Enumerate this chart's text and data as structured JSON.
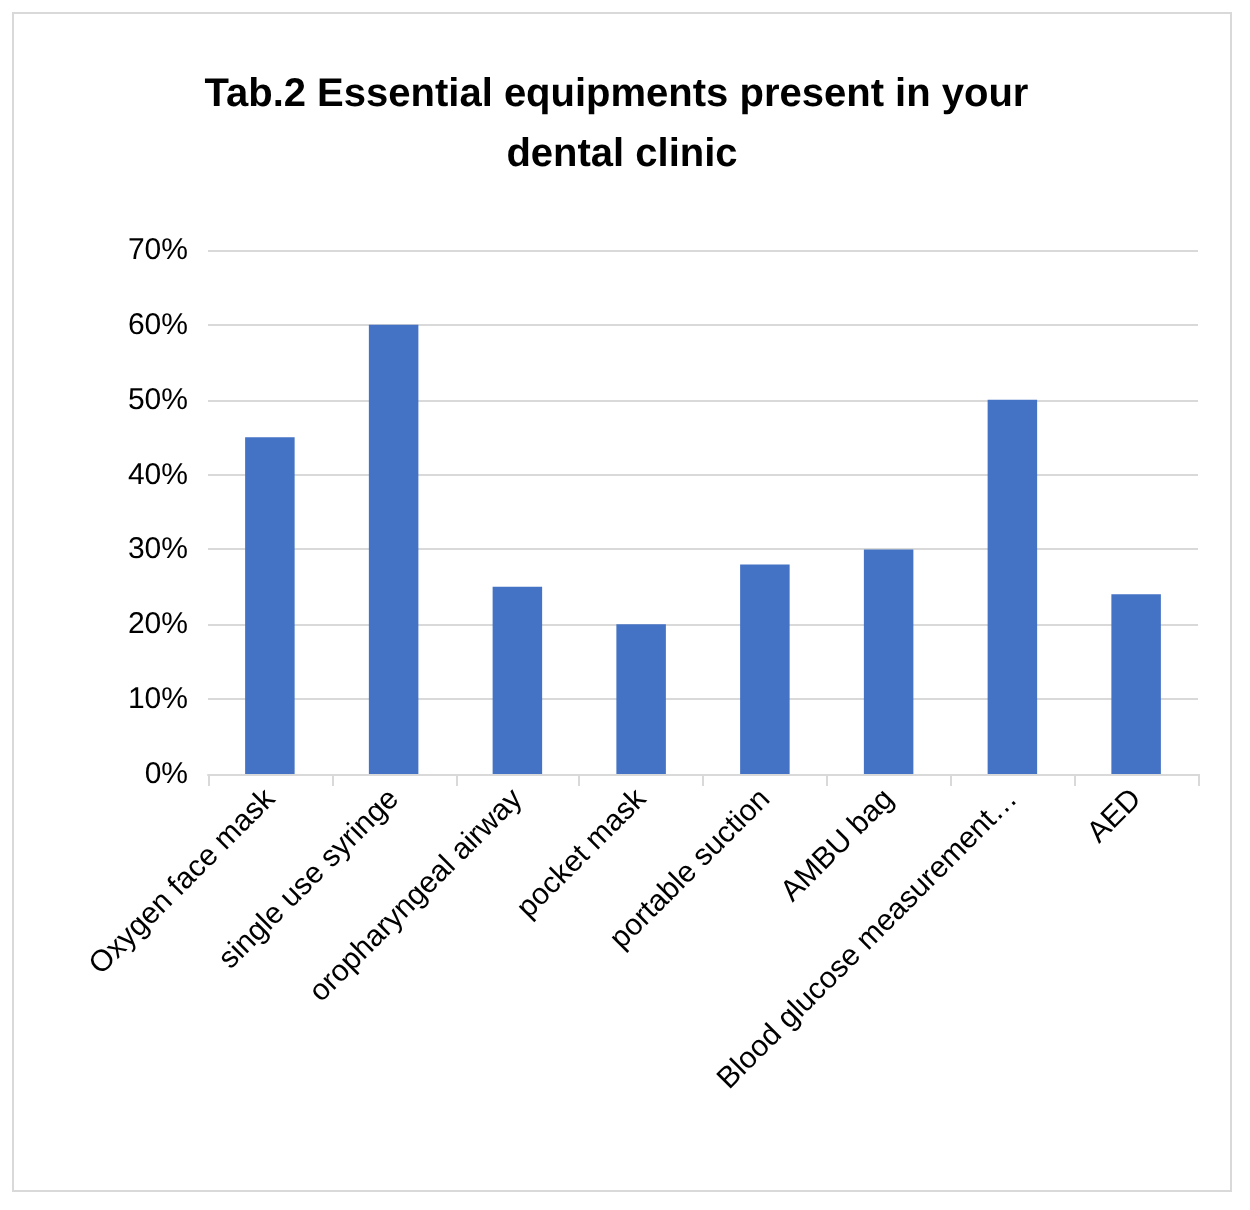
{
  "chart_data": {
    "type": "bar",
    "title": "Tab.2 Essential equipments present in your dental clinic",
    "categories": [
      "Oxygen face mask",
      "single use syringe",
      "oropharyngeal airway",
      "pocket mask",
      "portable suction",
      "AMBU bag",
      "Blood glucose measurement…",
      "AED"
    ],
    "values": [
      45,
      60,
      25,
      20,
      28,
      30,
      50,
      24
    ],
    "color": "#4472c4",
    "ylim": [
      0,
      70
    ],
    "yticks": [
      {
        "value": 0,
        "label": "0%"
      },
      {
        "value": 10,
        "label": "10%"
      },
      {
        "value": 20,
        "label": "20%"
      },
      {
        "value": 30,
        "label": "30%"
      },
      {
        "value": 40,
        "label": "40%"
      },
      {
        "value": 50,
        "label": "50%"
      },
      {
        "value": 60,
        "label": "60%"
      },
      {
        "value": 70,
        "label": "70%"
      }
    ],
    "grid": "y"
  }
}
